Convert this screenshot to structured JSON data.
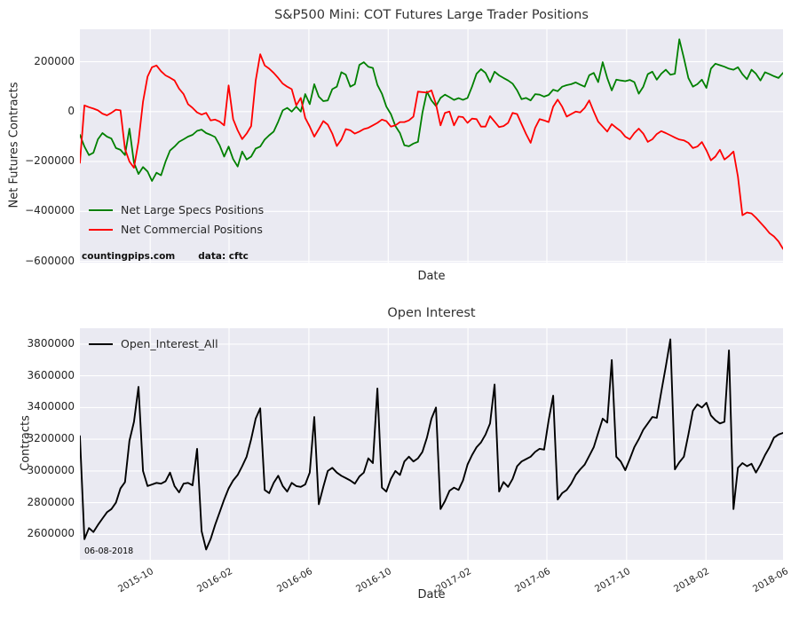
{
  "figure": {
    "background": "#ffffff",
    "panel_background": "#eaeaf2",
    "grid_color": "#ffffff",
    "text_color": "#262626"
  },
  "chart_data": [
    {
      "type": "line",
      "title": "S&P500 Mini: COT Futures Large Trader Positions",
      "xlabel": "Date",
      "ylabel": "Net Futures Contracts",
      "x_start": "2015-06-16",
      "x_frequency": "weekly",
      "ylim": [
        -605000,
        330000
      ],
      "grid": true,
      "legend_position": "lower left",
      "show_x_tick_labels": false,
      "watermark": {
        "site": "countingpips.com",
        "source": "data: cftc"
      },
      "yticks": [
        {
          "value": 200000,
          "label": "200000"
        },
        {
          "value": 0,
          "label": "0"
        },
        {
          "value": -200000,
          "label": "−200000"
        },
        {
          "value": -400000,
          "label": "−400000"
        },
        {
          "value": -600000,
          "label": "−600000"
        }
      ],
      "xticks": [
        {
          "pos": 15.6,
          "label": "2015-10"
        },
        {
          "pos": 33.1,
          "label": "2016-02"
        },
        {
          "pos": 50.8,
          "label": "2016-06"
        },
        {
          "pos": 68.4,
          "label": "2016-10"
        },
        {
          "pos": 86.1,
          "label": "2017-02"
        },
        {
          "pos": 103.6,
          "label": "2017-06"
        },
        {
          "pos": 121.3,
          "label": "2017-10"
        },
        {
          "pos": 138.9,
          "label": "2018-02"
        },
        {
          "pos": 156.4,
          "label": "2018-06"
        }
      ],
      "series": [
        {
          "name": "Net Large Specs Positions",
          "color": "#008000",
          "values": [
            -93000,
            -140000,
            -174000,
            -165000,
            -111000,
            -86000,
            -100000,
            -108000,
            -146000,
            -153000,
            -174000,
            -68000,
            -205000,
            -250000,
            -222000,
            -240000,
            -278000,
            -245000,
            -255000,
            -200000,
            -156000,
            -140000,
            -121000,
            -111000,
            -100000,
            -93000,
            -77000,
            -72000,
            -86000,
            -93000,
            -102000,
            -135000,
            -180000,
            -140000,
            -190000,
            -220000,
            -160000,
            -192000,
            -180000,
            -148000,
            -140000,
            -112000,
            -95000,
            -80000,
            -40000,
            5000,
            15000,
            0,
            20000,
            0,
            70000,
            30000,
            110000,
            60000,
            42000,
            45000,
            90000,
            100000,
            158000,
            148000,
            100000,
            110000,
            187000,
            198000,
            180000,
            175000,
            107000,
            72000,
            20000,
            -10000,
            -58000,
            -86000,
            -135000,
            -139000,
            -128000,
            -121000,
            -5000,
            80000,
            45000,
            22000,
            55000,
            68000,
            58000,
            47000,
            54000,
            47000,
            55000,
            100000,
            152000,
            170000,
            155000,
            118000,
            160000,
            145000,
            135000,
            125000,
            112000,
            85000,
            50000,
            55000,
            45000,
            70000,
            68000,
            60000,
            67000,
            88000,
            82000,
            100000,
            106000,
            110000,
            117000,
            108000,
            100000,
            146000,
            155000,
            118000,
            198000,
            135000,
            85000,
            128000,
            125000,
            122000,
            127000,
            118000,
            72000,
            100000,
            150000,
            160000,
            128000,
            152000,
            168000,
            148000,
            152000,
            290000,
            215000,
            135000,
            100000,
            110000,
            128000,
            95000,
            172000,
            192000,
            186000,
            180000,
            172000,
            168000,
            178000,
            150000,
            130000,
            168000,
            152000,
            125000,
            158000,
            150000,
            142000,
            135000,
            155000
          ]
        },
        {
          "name": "Net Commercial Positions",
          "color": "#ff0000",
          "values": [
            -205000,
            25000,
            18000,
            12000,
            5000,
            -8000,
            -15000,
            -5000,
            8000,
            5000,
            -150000,
            -200000,
            -225000,
            -120000,
            40000,
            140000,
            178000,
            185000,
            162000,
            145000,
            136000,
            125000,
            92000,
            70000,
            30000,
            15000,
            -3000,
            -12000,
            -5000,
            -35000,
            -32000,
            -40000,
            -55000,
            105000,
            -30000,
            -75000,
            -110000,
            -88000,
            -58000,
            124000,
            230000,
            185000,
            172000,
            155000,
            135000,
            112000,
            100000,
            90000,
            25000,
            55000,
            -25000,
            -60000,
            -100000,
            -70000,
            -38000,
            -52000,
            -88000,
            -138000,
            -112000,
            -70000,
            -75000,
            -88000,
            -80000,
            -70000,
            -65000,
            -55000,
            -45000,
            -32000,
            -38000,
            -60000,
            -55000,
            -42000,
            -42000,
            -35000,
            -20000,
            80000,
            78000,
            76000,
            85000,
            30000,
            -55000,
            -5000,
            0,
            -55000,
            -20000,
            -22000,
            -45000,
            -28000,
            -30000,
            -60000,
            -60000,
            -18000,
            -40000,
            -62000,
            -58000,
            -45000,
            -5000,
            -10000,
            -50000,
            -90000,
            -125000,
            -65000,
            -30000,
            -35000,
            -42000,
            20000,
            48000,
            20000,
            -20000,
            -10000,
            0,
            -3000,
            15000,
            45000,
            0,
            -40000,
            -60000,
            -80000,
            -50000,
            -65000,
            -78000,
            -100000,
            -111000,
            -86000,
            -68000,
            -88000,
            -121000,
            -111000,
            -90000,
            -78000,
            -86000,
            -95000,
            -104000,
            -112000,
            -115000,
            -125000,
            -146000,
            -140000,
            -122000,
            -155000,
            -195000,
            -180000,
            -153000,
            -192000,
            -178000,
            -160000,
            -260000,
            -415000,
            -404000,
            -408000,
            -425000,
            -445000,
            -465000,
            -487000,
            -500000,
            -520000,
            -550000
          ]
        }
      ]
    },
    {
      "type": "line",
      "title": "Open Interest",
      "xlabel": "Date",
      "ylabel": "Contracts",
      "x_start": "2015-06-16",
      "x_frequency": "weekly",
      "ylim": [
        2440000,
        3900000
      ],
      "grid": true,
      "legend_position": "upper left",
      "show_x_tick_labels": true,
      "annotation": "06-08-2018",
      "yticks": [
        {
          "value": 3800000,
          "label": "3800000"
        },
        {
          "value": 3600000,
          "label": "3600000"
        },
        {
          "value": 3400000,
          "label": "3400000"
        },
        {
          "value": 3200000,
          "label": "3200000"
        },
        {
          "value": 3000000,
          "label": "3000000"
        },
        {
          "value": 2800000,
          "label": "2800000"
        },
        {
          "value": 2600000,
          "label": "2600000"
        }
      ],
      "xticks": [
        {
          "pos": 15.6,
          "label": "2015-10"
        },
        {
          "pos": 33.1,
          "label": "2016-02"
        },
        {
          "pos": 50.8,
          "label": "2016-06"
        },
        {
          "pos": 68.4,
          "label": "2016-10"
        },
        {
          "pos": 86.1,
          "label": "2017-02"
        },
        {
          "pos": 103.6,
          "label": "2017-06"
        },
        {
          "pos": 121.3,
          "label": "2017-10"
        },
        {
          "pos": 138.9,
          "label": "2018-02"
        },
        {
          "pos": 156.4,
          "label": "2018-06"
        }
      ],
      "series": [
        {
          "name": "Open_Interest_All",
          "color": "#000000",
          "values": [
            3220000,
            2570000,
            2640000,
            2615000,
            2660000,
            2700000,
            2740000,
            2760000,
            2800000,
            2890000,
            2930000,
            3190000,
            3310000,
            3530000,
            3000000,
            2905000,
            2915000,
            2925000,
            2920000,
            2935000,
            2990000,
            2905000,
            2865000,
            2920000,
            2925000,
            2910000,
            3140000,
            2620000,
            2505000,
            2570000,
            2660000,
            2740000,
            2820000,
            2890000,
            2940000,
            2975000,
            3030000,
            3090000,
            3200000,
            3330000,
            3395000,
            2880000,
            2860000,
            2925000,
            2970000,
            2905000,
            2870000,
            2925000,
            2905000,
            2900000,
            2915000,
            2990000,
            3340000,
            2790000,
            2900000,
            3000000,
            3020000,
            2990000,
            2970000,
            2955000,
            2940000,
            2920000,
            2965000,
            2990000,
            3080000,
            3050000,
            3520000,
            2895000,
            2870000,
            2950000,
            3000000,
            2975000,
            3060000,
            3090000,
            3060000,
            3080000,
            3120000,
            3210000,
            3330000,
            3400000,
            2760000,
            2810000,
            2875000,
            2895000,
            2880000,
            2940000,
            3040000,
            3100000,
            3150000,
            3180000,
            3230000,
            3300000,
            3545000,
            2870000,
            2930000,
            2900000,
            2950000,
            3030000,
            3060000,
            3075000,
            3090000,
            3120000,
            3140000,
            3135000,
            3320000,
            3475000,
            2820000,
            2860000,
            2880000,
            2920000,
            2975000,
            3010000,
            3040000,
            3095000,
            3150000,
            3240000,
            3330000,
            3305000,
            3700000,
            3090000,
            3060000,
            3005000,
            3075000,
            3150000,
            3200000,
            3260000,
            3300000,
            3340000,
            3335000,
            3500000,
            3660000,
            3830000,
            3010000,
            3055000,
            3090000,
            3230000,
            3380000,
            3420000,
            3400000,
            3430000,
            3350000,
            3320000,
            3300000,
            3310000,
            3760000,
            2760000,
            3020000,
            3050000,
            3030000,
            3045000,
            2990000,
            3040000,
            3100000,
            3150000,
            3210000,
            3230000,
            3240000
          ]
        }
      ]
    }
  ]
}
